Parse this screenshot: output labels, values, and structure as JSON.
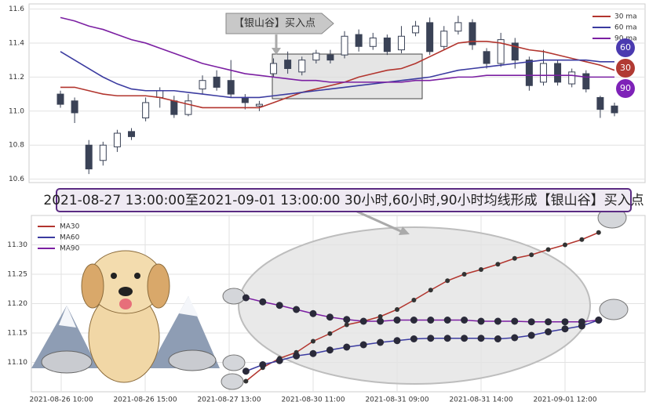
{
  "chart_data": [
    {
      "type": "candlestick",
      "annotation": "【银山谷】买入点",
      "open": [
        11.1,
        11.06,
        10.8,
        10.71,
        10.79,
        10.88,
        10.96,
        11.08,
        11.06,
        10.98,
        11.13,
        11.2,
        11.18,
        11.08,
        11.03,
        11.22,
        11.3,
        11.23,
        11.3,
        11.33,
        11.33,
        11.45,
        11.38,
        11.43,
        11.36,
        11.46,
        11.52,
        11.38,
        11.47,
        11.52,
        11.35,
        11.28,
        11.4,
        11.3,
        11.17,
        11.28,
        11.16,
        11.22,
        11.08,
        11.03
      ],
      "high": [
        11.12,
        11.08,
        10.83,
        10.82,
        10.89,
        10.9,
        11.08,
        11.14,
        11.09,
        11.1,
        11.21,
        11.24,
        11.3,
        11.1,
        11.06,
        11.31,
        11.35,
        11.32,
        11.36,
        11.36,
        11.47,
        11.48,
        11.46,
        11.45,
        11.5,
        11.53,
        11.55,
        11.5,
        11.56,
        11.54,
        11.37,
        11.46,
        11.43,
        11.32,
        11.36,
        11.3,
        11.25,
        11.24,
        11.09,
        11.05
      ],
      "low": [
        11.02,
        10.93,
        10.63,
        10.68,
        10.76,
        10.83,
        10.94,
        11.02,
        10.96,
        10.97,
        11.1,
        11.12,
        11.08,
        11.01,
        11.0,
        11.2,
        11.22,
        11.21,
        11.28,
        11.28,
        11.31,
        11.35,
        11.36,
        11.33,
        11.34,
        11.44,
        11.33,
        11.36,
        11.45,
        11.36,
        11.25,
        11.26,
        11.25,
        11.12,
        11.15,
        11.15,
        11.14,
        11.11,
        10.96,
        10.97
      ],
      "close": [
        11.04,
        10.99,
        10.66,
        10.8,
        10.87,
        10.85,
        11.05,
        11.12,
        10.98,
        11.06,
        11.18,
        11.14,
        11.1,
        11.05,
        11.04,
        11.28,
        11.25,
        11.3,
        11.34,
        11.3,
        11.44,
        11.38,
        11.43,
        11.35,
        11.44,
        11.5,
        11.35,
        11.47,
        11.52,
        11.39,
        11.28,
        11.42,
        11.3,
        11.15,
        11.28,
        11.17,
        11.23,
        11.13,
        11.01,
        10.99
      ],
      "up_color": "#ffffff",
      "down_color": "#3a4256",
      "series": [
        {
          "name": "30 ma",
          "color": "#b2352e",
          "values": [
            11.14,
            11.14,
            11.12,
            11.1,
            11.09,
            11.09,
            11.09,
            11.08,
            11.06,
            11.04,
            11.02,
            11.02,
            11.02,
            11.02,
            11.02,
            11.05,
            11.08,
            11.11,
            11.13,
            11.15,
            11.17,
            11.2,
            11.22,
            11.24,
            11.25,
            11.28,
            11.32,
            11.36,
            11.4,
            11.41,
            11.41,
            11.4,
            11.38,
            11.36,
            11.35,
            11.33,
            11.31,
            11.29,
            11.27,
            11.24
          ]
        },
        {
          "name": "60 ma",
          "color": "#3b3ba0",
          "values": [
            11.35,
            11.3,
            11.25,
            11.2,
            11.16,
            11.13,
            11.12,
            11.12,
            11.12,
            11.11,
            11.1,
            11.09,
            11.08,
            11.08,
            11.08,
            11.09,
            11.1,
            11.11,
            11.12,
            11.13,
            11.14,
            11.15,
            11.16,
            11.17,
            11.18,
            11.19,
            11.2,
            11.22,
            11.24,
            11.25,
            11.26,
            11.27,
            11.28,
            11.29,
            11.3,
            11.3,
            11.3,
            11.3,
            11.29,
            11.29
          ]
        },
        {
          "name": "90 ma",
          "color": "#7b1fa2",
          "values": [
            11.55,
            11.53,
            11.5,
            11.48,
            11.45,
            11.42,
            11.4,
            11.37,
            11.34,
            11.31,
            11.28,
            11.26,
            11.24,
            11.22,
            11.21,
            11.2,
            11.19,
            11.18,
            11.18,
            11.17,
            11.17,
            11.17,
            11.17,
            11.17,
            11.17,
            11.18,
            11.18,
            11.19,
            11.2,
            11.2,
            11.21,
            11.21,
            11.21,
            11.21,
            11.21,
            11.21,
            11.21,
            11.2,
            11.2,
            11.2
          ]
        }
      ],
      "badges": [
        {
          "label": 60,
          "color": "#4a3ab0"
        },
        {
          "label": 30,
          "color": "#b13a33"
        },
        {
          "label": 90,
          "color": "#7e22b8"
        }
      ],
      "ylim": [
        10.58,
        11.63
      ],
      "yticks": [
        10.6,
        10.8,
        {
          "value": 11.0,
          "label": "11.0"
        },
        11.2,
        11.4,
        11.6
      ],
      "grid": true,
      "legend": "upper right"
    },
    {
      "type": "line",
      "categories": [
        "2021-08-26 10:00",
        null,
        null,
        null,
        null,
        "2021-08-26 15:00",
        null,
        null,
        null,
        null,
        "2021-08-27 13:00",
        null,
        null,
        null,
        null,
        "2021-08-30 11:00",
        null,
        null,
        null,
        null,
        "2021-08-31 09:00",
        null,
        null,
        null,
        null,
        "2021-08-31 14:00",
        null,
        null,
        null,
        null,
        "2021-09-01 12:00",
        null,
        null
      ],
      "series": [
        {
          "name": "MA30",
          "color": "#b2352e",
          "values": [
            null,
            null,
            null,
            null,
            null,
            null,
            null,
            null,
            null,
            null,
            null,
            11.068,
            11.091,
            11.107,
            11.117,
            11.136,
            11.149,
            11.164,
            11.17,
            11.178,
            11.19,
            11.206,
            11.223,
            11.239,
            11.25,
            11.258,
            11.267,
            11.277,
            11.283,
            11.292,
            11.3,
            11.309,
            11.321
          ]
        },
        {
          "name": "MA60",
          "color": "#3b3ba0",
          "values": [
            null,
            null,
            null,
            null,
            null,
            null,
            null,
            null,
            null,
            null,
            null,
            11.085,
            11.096,
            11.103,
            11.111,
            11.115,
            11.121,
            11.126,
            11.13,
            11.134,
            11.137,
            11.14,
            11.141,
            11.141,
            11.141,
            11.141,
            11.14,
            11.142,
            11.146,
            11.152,
            11.157,
            11.162,
            11.172
          ]
        },
        {
          "name": "MA90",
          "color": "#7b1fa2",
          "values": [
            null,
            null,
            null,
            null,
            null,
            null,
            null,
            null,
            null,
            null,
            null,
            11.21,
            11.203,
            11.197,
            11.19,
            11.183,
            11.177,
            11.173,
            11.17,
            11.17,
            11.172,
            11.172,
            11.172,
            11.172,
            11.172,
            11.17,
            11.17,
            11.17,
            11.169,
            11.169,
            11.169,
            11.169,
            11.172
          ]
        }
      ],
      "ylim": [
        11.05,
        11.35
      ],
      "yticks": [
        {
          "value": 11.1,
          "label": "11.10"
        },
        {
          "value": 11.15,
          "label": "11.15"
        },
        {
          "value": 11.2,
          "label": "11.20"
        },
        {
          "value": 11.25,
          "label": "11.25"
        },
        {
          "value": 11.3,
          "label": "11.30"
        }
      ],
      "grid": true,
      "legend": "upper left"
    }
  ],
  "banner_text": "2021-08-27 13:00:00至2021-09-01 13:00:00 30小时,60小时,90小时均线形成【银山谷】买入点"
}
